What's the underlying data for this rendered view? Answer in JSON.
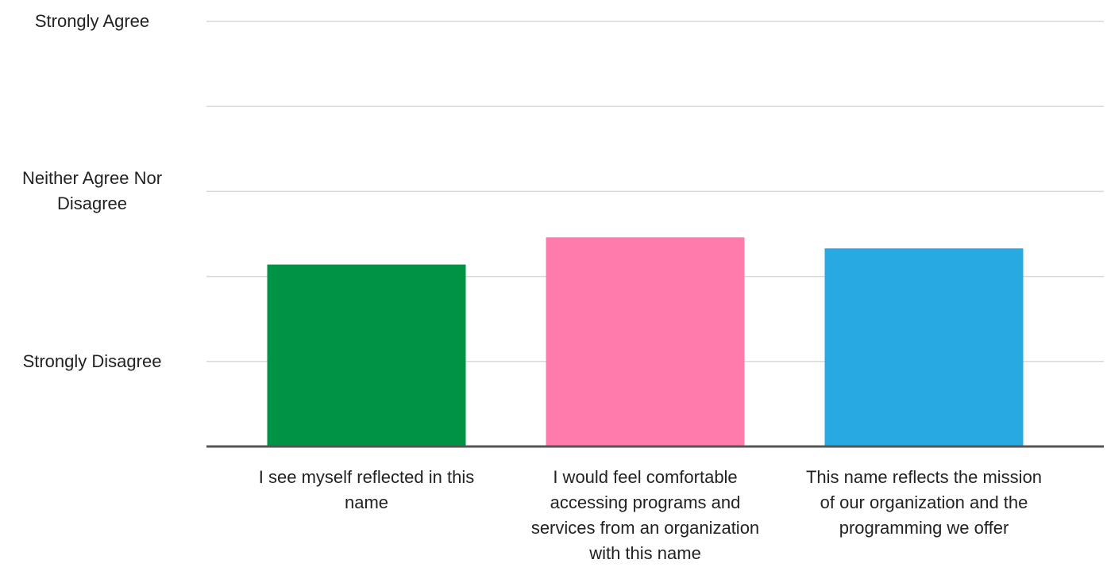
{
  "chart_data": {
    "type": "bar",
    "categories": [
      "I see myself reflected in this name",
      "I would feel comfortable accessing programs and services from an organization with this name",
      "This name reflects the mission of our organization and the programming we offer"
    ],
    "values": [
      2.14,
      2.46,
      2.33
    ],
    "colors": [
      "#009245",
      "#ff7bac",
      "#29a9e1"
    ],
    "ylim": [
      0,
      5
    ],
    "yticks": [
      {
        "value": 1,
        "label": "Strongly Disagree"
      },
      {
        "value": 2,
        "label": null
      },
      {
        "value": 3,
        "label": "Neither Agree Nor Disagree"
      },
      {
        "value": 4,
        "label": null
      },
      {
        "value": 5,
        "label": "Strongly Agree"
      }
    ],
    "grid": true
  }
}
